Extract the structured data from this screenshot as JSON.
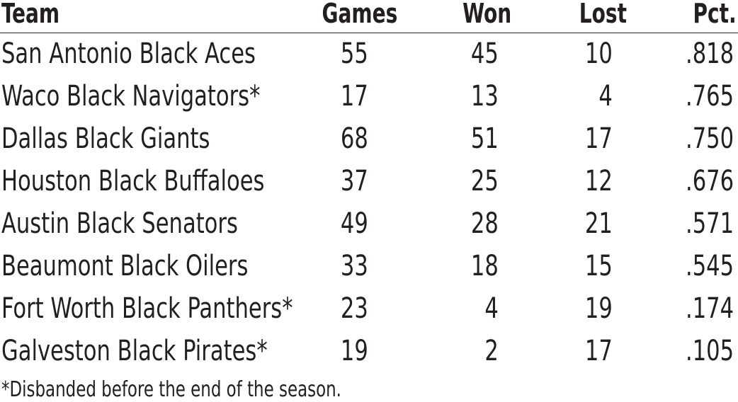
{
  "table": {
    "headers": {
      "team": "Team",
      "games": "Games",
      "won": "Won",
      "lost": "Lost",
      "pct": "Pct."
    },
    "rows": [
      {
        "team": "San Antonio Black Aces",
        "games": "55",
        "won": "45",
        "lost": "10",
        "pct": ".818"
      },
      {
        "team": "Waco Black Navigators*",
        "games": "17",
        "won": "13",
        "lost": "4",
        "pct": ".765"
      },
      {
        "team": "Dallas Black Giants",
        "games": "68",
        "won": "51",
        "lost": "17",
        "pct": ".750"
      },
      {
        "team": "Houston Black Buffaloes",
        "games": "37",
        "won": "25",
        "lost": "12",
        "pct": ".676"
      },
      {
        "team": "Austin Black Senators",
        "games": "49",
        "won": "28",
        "lost": "21",
        "pct": ".571"
      },
      {
        "team": "Beaumont Black Oilers",
        "games": "33",
        "won": "18",
        "lost": "15",
        "pct": ".545"
      },
      {
        "team": "Fort Worth Black Panthers*",
        "games": "23",
        "won": "4",
        "lost": "19",
        "pct": ".174"
      },
      {
        "team": "Galveston Black Pirates*",
        "games": "19",
        "won": "2",
        "lost": "17",
        "pct": ".105"
      }
    ]
  },
  "footnote": "*Disbanded before the end of the season."
}
